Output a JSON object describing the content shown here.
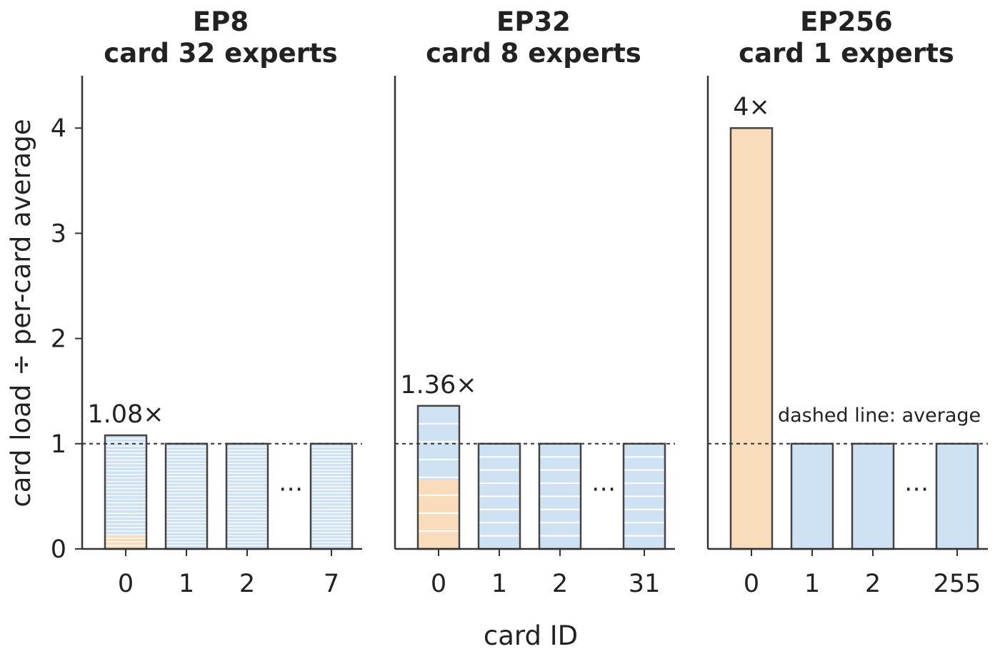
{
  "chart_data": [
    {
      "type": "bar",
      "title_lines": [
        "EP8",
        "card 32 experts"
      ],
      "categories": [
        "0",
        "1",
        "2",
        "7"
      ],
      "ellipsis_after_index": 2,
      "ellipsis_text": "⋯",
      "values": [
        1.08,
        1.0,
        1.0,
        1.0
      ],
      "hot_share": [
        0.12,
        0,
        0,
        0
      ],
      "stripe_count": 32,
      "value_label": {
        "index": 0,
        "text": "1.08×"
      },
      "ylim": [
        0,
        4.5
      ],
      "yticks": [
        "0",
        "1",
        "2",
        "3",
        "4"
      ],
      "show_y_axis": true,
      "reference_line": 1.0
    },
    {
      "type": "bar",
      "title_lines": [
        "EP32",
        "card 8 experts"
      ],
      "categories": [
        "0",
        "1",
        "2",
        "31"
      ],
      "ellipsis_after_index": 2,
      "ellipsis_text": "⋯",
      "values": [
        1.36,
        1.0,
        1.0,
        1.0
      ],
      "hot_share": [
        0.48,
        0,
        0,
        0
      ],
      "stripe_count": 8,
      "value_label": {
        "index": 0,
        "text": "1.36×"
      },
      "ylim": [
        0,
        4.5
      ],
      "show_y_axis": false,
      "reference_line": 1.0
    },
    {
      "type": "bar",
      "title_lines": [
        "EP256",
        "card 1 experts"
      ],
      "categories": [
        "0",
        "1",
        "2",
        "255"
      ],
      "ellipsis_after_index": 2,
      "ellipsis_text": "⋯",
      "values": [
        4.0,
        1.0,
        1.0,
        1.0
      ],
      "hot_share": [
        1.0,
        0,
        0,
        0
      ],
      "stripe_count": 1,
      "value_label": {
        "index": 0,
        "text": "4×"
      },
      "ylim": [
        0,
        4.5
      ],
      "show_y_axis": false,
      "reference_line": 1.0,
      "annotation": "dashed line: average"
    }
  ],
  "ylabel": "card load ÷ per-card average",
  "xlabel": "card ID",
  "colors": {
    "normal_fill": "#cfe2f3",
    "hot_fill": "#f9dcbb",
    "stripe": "#ffffff",
    "edge": "#444444",
    "axis": "#333333",
    "text": "#222222"
  }
}
